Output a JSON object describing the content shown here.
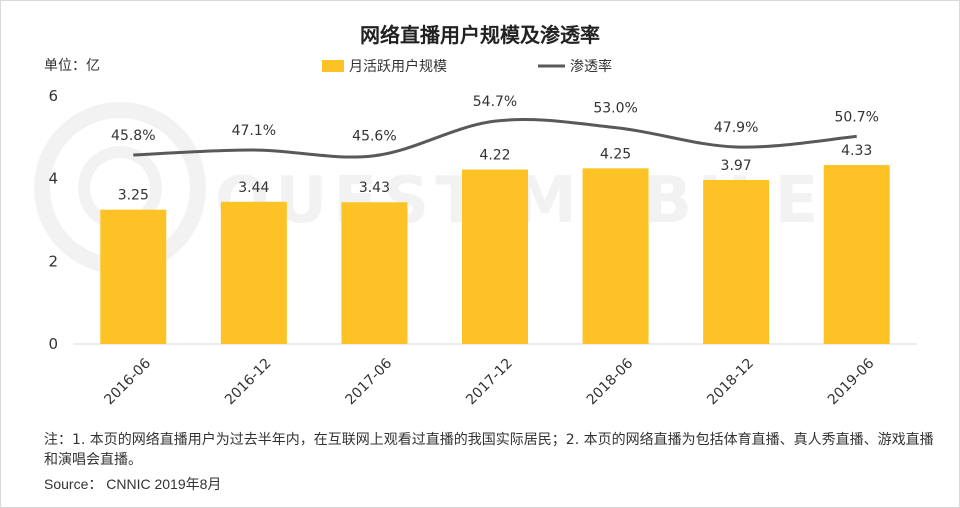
{
  "chart_data": {
    "type": "bar",
    "title": "网络直播用户规模及渗透率",
    "unit_label": "单位：亿",
    "categories": [
      "2016-06",
      "2016-12",
      "2017-06",
      "2017-12",
      "2018-06",
      "2018-12",
      "2019-06"
    ],
    "series": [
      {
        "name": "月活跃用户规模",
        "type": "bar",
        "color": "#FDC326",
        "values": [
          3.25,
          3.44,
          3.43,
          4.22,
          4.25,
          3.97,
          4.33
        ],
        "labels": [
          "3.25",
          "3.44",
          "3.43",
          "4.22",
          "4.25",
          "3.97",
          "4.33"
        ]
      },
      {
        "name": "渗透率",
        "type": "line",
        "color": "#595959",
        "values": [
          45.8,
          47.1,
          45.6,
          54.7,
          53.0,
          47.9,
          50.7
        ],
        "labels": [
          "45.8%",
          "47.1%",
          "45.6%",
          "54.7%",
          "53.0%",
          "47.9%",
          "50.7%"
        ]
      }
    ],
    "y_ticks": [
      "0",
      "2",
      "4",
      "6"
    ],
    "ylim": [
      0,
      6
    ],
    "grid": false,
    "legend_position": "top-center"
  },
  "watermark": "QUEST MOBILE",
  "footer": {
    "note": "注：1. 本页的网络直播用户为过去半年内，在互联网上观看过直播的我国实际居民；2. 本页的网络直播为包括体育直播、真人秀直播、游戏直播和演唱会直播。",
    "source": "Source： CNNIC 2019年8月"
  }
}
